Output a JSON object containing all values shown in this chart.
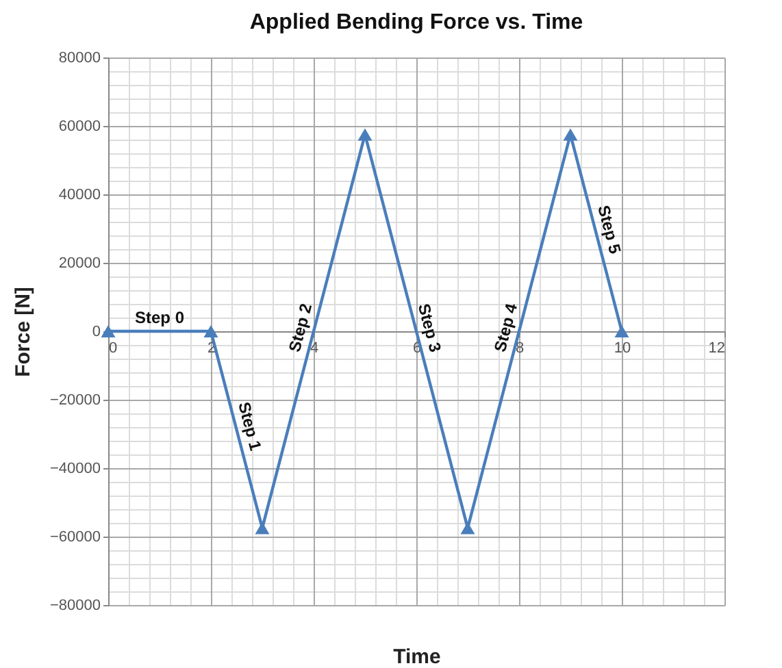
{
  "chart_data": {
    "type": "line",
    "title": "Applied Bending Force vs. Time",
    "xlabel": "Time",
    "ylabel": "Force [N]",
    "x": [
      0,
      2,
      3,
      5,
      7,
      9,
      10
    ],
    "series": [
      {
        "color": "#4a7ebb",
        "values": [
          0,
          0,
          -57500,
          57500,
          -57500,
          57500,
          0
        ]
      }
    ],
    "xlim": [
      0,
      12
    ],
    "xticks": [
      0,
      2,
      4,
      6,
      8,
      10,
      12
    ],
    "ylim": [
      -80000,
      80000
    ],
    "yticks": [
      -80000,
      -60000,
      -40000,
      -20000,
      0,
      20000,
      40000,
      60000,
      80000
    ],
    "grid": true,
    "marker": "triangle",
    "line_style": "solid",
    "annotations": [
      "Step 0",
      "Step 1",
      "Step 2",
      "Step 3",
      "Step 4",
      "Step 5"
    ]
  }
}
